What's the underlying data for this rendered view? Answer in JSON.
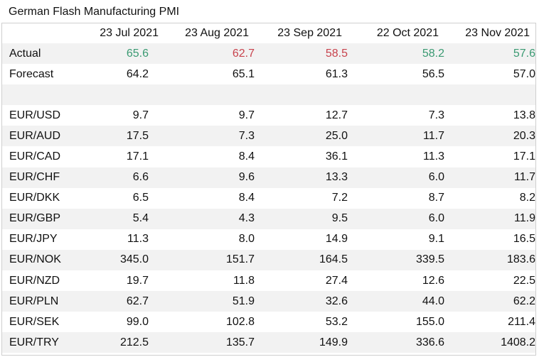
{
  "title": "German Flash Manufacturing PMI",
  "columns": [
    "23 Jul 2021",
    "23 Aug 2021",
    "23 Sep 2021",
    "22 Oct 2021",
    "23 Nov 2021"
  ],
  "actual": {
    "label": "Actual",
    "values": [
      "65.6",
      "62.7",
      "58.5",
      "58.2",
      "57.6"
    ],
    "colors": [
      "#3a9a72",
      "#c8434d",
      "#c8434d",
      "#3a9a72",
      "#3a9a72"
    ]
  },
  "forecast": {
    "label": "Forecast",
    "values": [
      "64.2",
      "65.1",
      "61.3",
      "56.5",
      "57.0"
    ]
  },
  "pairs": [
    {
      "label": "EUR/USD",
      "values": [
        "9.7",
        "9.7",
        "12.7",
        "7.3",
        "13.8"
      ]
    },
    {
      "label": "EUR/AUD",
      "values": [
        "17.5",
        "7.3",
        "25.0",
        "11.7",
        "20.3"
      ]
    },
    {
      "label": "EUR/CAD",
      "values": [
        "17.1",
        "8.4",
        "36.1",
        "11.3",
        "17.1"
      ]
    },
    {
      "label": "EUR/CHF",
      "values": [
        "6.6",
        "9.6",
        "13.3",
        "6.0",
        "11.7"
      ]
    },
    {
      "label": "EUR/DKK",
      "values": [
        "6.5",
        "8.4",
        "7.2",
        "8.7",
        "8.2"
      ]
    },
    {
      "label": "EUR/GBP",
      "values": [
        "5.4",
        "4.3",
        "9.5",
        "6.0",
        "11.9"
      ]
    },
    {
      "label": "EUR/JPY",
      "values": [
        "11.3",
        "8.0",
        "14.9",
        "9.1",
        "16.5"
      ]
    },
    {
      "label": "EUR/NOK",
      "values": [
        "345.0",
        "151.7",
        "164.5",
        "339.5",
        "183.6"
      ]
    },
    {
      "label": "EUR/NZD",
      "values": [
        "19.7",
        "11.8",
        "27.4",
        "12.6",
        "22.5"
      ]
    },
    {
      "label": "EUR/PLN",
      "values": [
        "62.7",
        "51.9",
        "32.6",
        "44.0",
        "62.2"
      ]
    },
    {
      "label": "EUR/SEK",
      "values": [
        "99.0",
        "102.8",
        "53.2",
        "155.0",
        "211.4"
      ]
    },
    {
      "label": "EUR/TRY",
      "values": [
        "212.5",
        "135.7",
        "149.9",
        "336.6",
        "1408.2"
      ]
    }
  ]
}
